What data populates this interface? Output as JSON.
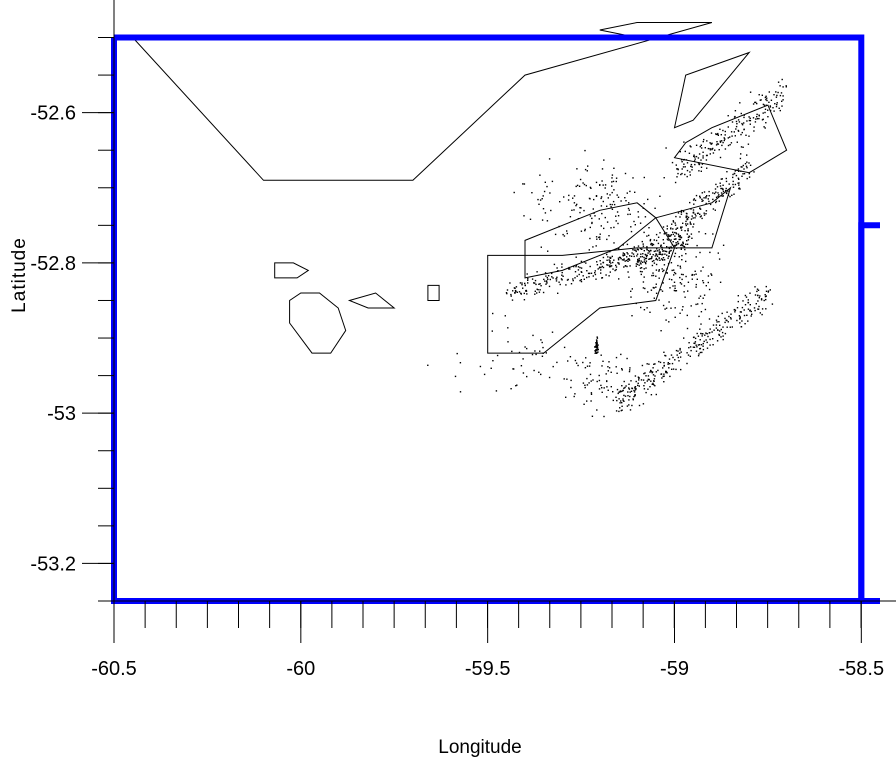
{
  "chart_data": {
    "type": "scatter",
    "title": "",
    "xlabel": "Longitude",
    "ylabel": "Latitude",
    "xlim": [
      -60.5,
      -58.45
    ],
    "ylim": [
      -53.25,
      -52.49
    ],
    "x_ticks": [
      {
        "value": -60.5,
        "label": "-60.5"
      },
      {
        "value": -60,
        "label": "-60"
      },
      {
        "value": -59.5,
        "label": "-59.5"
      },
      {
        "value": -59,
        "label": "-59"
      },
      {
        "value": -58.5,
        "label": "-58.5"
      }
    ],
    "y_ticks": [
      {
        "value": -52.6,
        "label": "-52.6"
      },
      {
        "value": -52.8,
        "label": "-52.8"
      },
      {
        "value": -53,
        "label": "-53"
      },
      {
        "value": -53.2,
        "label": "-53.2"
      }
    ],
    "x_minor_step": 0.0833,
    "y_minor_step": 0.05,
    "grid": false,
    "colors": {
      "boundary": "#0000ff",
      "coastline": "#000000",
      "points": "#000000"
    },
    "boundary_polygons": [
      {
        "name": "",
        "points": [
          [
            -60.5,
            -52.5
          ],
          [
            -58.5,
            -52.5
          ],
          [
            -58.5,
            -53.25
          ],
          [
            -60.5,
            -53.25
          ]
        ]
      },
      {
        "name": "",
        "points": [
          [
            -58.45,
            -52.75
          ],
          [
            -58.5,
            -52.75
          ],
          [
            -58.5,
            -53.25
          ],
          [
            -58.45,
            -53.25
          ]
        ]
      }
    ],
    "coastline_polygons": [
      [
        [
          -60.45,
          -52.5
        ],
        [
          -60.38,
          -52.5
        ],
        [
          -59.9,
          -52.5
        ],
        [
          -59.45,
          -52.5
        ],
        [
          -59.1,
          -52.5
        ],
        [
          -59.2,
          -52.49
        ],
        [
          -59.1,
          -52.48
        ],
        [
          -58.9,
          -52.48
        ],
        [
          -59.4,
          -52.55
        ],
        [
          -59.7,
          -52.69
        ],
        [
          -59.9,
          -52.69
        ],
        [
          -60.1,
          -52.69
        ]
      ],
      [
        [
          -59.0,
          -52.62
        ],
        [
          -58.97,
          -52.55
        ],
        [
          -58.8,
          -52.52
        ],
        [
          -58.95,
          -52.61
        ]
      ],
      [
        [
          -58.97,
          -52.64
        ],
        [
          -58.9,
          -52.62
        ],
        [
          -58.75,
          -52.59
        ],
        [
          -58.7,
          -52.65
        ],
        [
          -58.8,
          -52.68
        ],
        [
          -59.0,
          -52.66
        ]
      ],
      [
        [
          -59.4,
          -52.77
        ],
        [
          -59.2,
          -52.73
        ],
        [
          -59.1,
          -52.72
        ],
        [
          -59.05,
          -52.74
        ],
        [
          -59.15,
          -52.78
        ],
        [
          -59.3,
          -52.81
        ],
        [
          -59.4,
          -52.82
        ]
      ],
      [
        [
          -59.5,
          -52.79
        ],
        [
          -59.3,
          -52.79
        ],
        [
          -59.1,
          -52.78
        ],
        [
          -59.0,
          -52.78
        ],
        [
          -59.05,
          -52.85
        ],
        [
          -59.2,
          -52.86
        ],
        [
          -59.35,
          -52.92
        ],
        [
          -59.5,
          -52.92
        ]
      ],
      [
        [
          -59.05,
          -52.74
        ],
        [
          -58.9,
          -52.72
        ],
        [
          -58.85,
          -52.7
        ],
        [
          -58.9,
          -52.78
        ],
        [
          -59.0,
          -52.78
        ]
      ],
      [
        [
          -60.0,
          -52.84
        ],
        [
          -59.95,
          -52.84
        ],
        [
          -59.9,
          -52.86
        ],
        [
          -59.88,
          -52.89
        ],
        [
          -59.92,
          -52.92
        ],
        [
          -59.97,
          -52.92
        ],
        [
          -60.03,
          -52.88
        ],
        [
          -60.03,
          -52.85
        ]
      ],
      [
        [
          -59.87,
          -52.85
        ],
        [
          -59.8,
          -52.84
        ],
        [
          -59.75,
          -52.86
        ],
        [
          -59.82,
          -52.86
        ]
      ],
      [
        [
          -59.66,
          -52.83
        ],
        [
          -59.63,
          -52.83
        ],
        [
          -59.63,
          -52.85
        ],
        [
          -59.66,
          -52.85
        ]
      ],
      [
        [
          -60.07,
          -52.8
        ],
        [
          -60.02,
          -52.8
        ],
        [
          -59.98,
          -52.81
        ],
        [
          -60.01,
          -52.82
        ],
        [
          -60.07,
          -52.82
        ]
      ]
    ]
  }
}
